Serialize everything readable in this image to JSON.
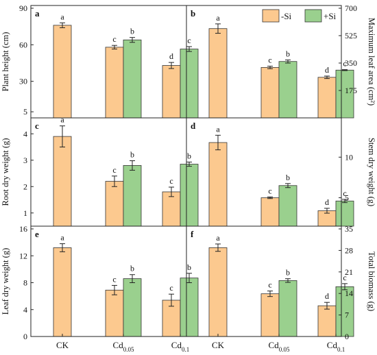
{
  "colors": {
    "minus_si": "#FCC98F",
    "plus_si": "#9AD08E",
    "edge": "#333333"
  },
  "legend": [
    {
      "label": "-Si",
      "color": "#FCC98F"
    },
    {
      "label": "+Si",
      "color": "#9AD08E"
    }
  ],
  "x_labels": [
    {
      "main": "CK",
      "sub": ""
    },
    {
      "main": "Cd",
      "sub": "0.05"
    },
    {
      "main": "Cd",
      "sub": "0.1"
    }
  ],
  "chart_data": [
    {
      "type": "bar",
      "panel": "a",
      "ylabel": "Plant height (cm)",
      "ylim": [
        0,
        90
      ],
      "yticks": [
        "5",
        "30",
        "60",
        "90"
      ],
      "yside": "left",
      "categories": [
        "CK",
        "Cd0.05",
        "Cd0.1"
      ],
      "series": [
        {
          "name": "-Si",
          "values": [
            76,
            58,
            43
          ],
          "errors": [
            2,
            1.5,
            2.5
          ],
          "letters": [
            "a",
            "c",
            "d"
          ]
        },
        {
          "name": "+Si",
          "values": [
            null,
            64,
            56.5
          ],
          "errors": [
            null,
            2,
            2
          ],
          "letters": [
            "",
            "b",
            "c"
          ]
        }
      ]
    },
    {
      "type": "bar",
      "panel": "b",
      "ylabel": "Maximum leaf area (cm²)",
      "ylim": [
        0,
        700
      ],
      "yticks": [
        "175",
        "350",
        "525",
        "700"
      ],
      "yside": "right",
      "categories": [
        "CK",
        "Cd0.05",
        "Cd0.1"
      ],
      "series": [
        {
          "name": "-Si",
          "values": [
            570,
            322,
            259
          ],
          "errors": [
            30,
            8,
            8
          ],
          "letters": [
            "a",
            "c",
            "d"
          ]
        },
        {
          "name": "+Si",
          "values": [
            null,
            360,
            305
          ],
          "errors": [
            null,
            10,
            3
          ],
          "letters": [
            "",
            "b",
            "c"
          ]
        }
      ]
    },
    {
      "type": "bar",
      "panel": "c",
      "ylabel": "Root dry weight (g)",
      "ylim": [
        0.5,
        4.5
      ],
      "yticks": [
        "1",
        "2",
        "3",
        "4"
      ],
      "yside": "left",
      "categories": [
        "CK",
        "Cd0.05",
        "Cd0.1"
      ],
      "series": [
        {
          "name": "-Si",
          "values": [
            3.9,
            2.2,
            1.8
          ],
          "errors": [
            0.4,
            0.2,
            0.18
          ],
          "letters": [
            "a",
            "c",
            "c"
          ]
        },
        {
          "name": "+Si",
          "values": [
            null,
            2.8,
            2.85
          ],
          "errors": [
            null,
            0.18,
            0.08
          ],
          "letters": [
            "",
            "b",
            "b"
          ]
        }
      ]
    },
    {
      "type": "bar",
      "panel": "d",
      "ylabel": "Stem dry weight (g)",
      "ylim": [
        1.5,
        14.5
      ],
      "yticks": [
        "5",
        "10"
      ],
      "yside": "right",
      "categories": [
        "CK",
        "Cd0.05",
        "Cd0.1"
      ],
      "series": [
        {
          "name": "-Si",
          "values": [
            11.8,
            5,
            3.4
          ],
          "errors": [
            0.9,
            0.1,
            0.3
          ],
          "letters": [
            "a",
            "c",
            "d"
          ]
        },
        {
          "name": "+Si",
          "values": [
            null,
            6.5,
            4.6
          ],
          "errors": [
            null,
            0.25,
            0.2
          ],
          "letters": [
            "",
            "b",
            "c"
          ]
        }
      ]
    },
    {
      "type": "bar",
      "panel": "e",
      "ylabel": "Leaf dry weight (g)",
      "ylim": [
        0,
        16
      ],
      "yticks": [
        "0",
        "4",
        "8",
        "12",
        "16"
      ],
      "yside": "left",
      "categories": [
        "CK",
        "Cd0.05",
        "Cd0.1"
      ],
      "series": [
        {
          "name": "-Si",
          "values": [
            13.2,
            6.9,
            5.4
          ],
          "errors": [
            0.6,
            0.7,
            0.9
          ],
          "letters": [
            "a",
            "c",
            "c"
          ]
        },
        {
          "name": "+Si",
          "values": [
            null,
            8.6,
            8.7
          ],
          "errors": [
            null,
            0.6,
            0.7
          ],
          "letters": [
            "",
            "b",
            "b"
          ]
        }
      ]
    },
    {
      "type": "bar",
      "panel": "f",
      "ylabel": "Total biomass (g)",
      "ylim": [
        0,
        35
      ],
      "yticks": [
        "0",
        "7",
        "14",
        "21",
        "28",
        "35"
      ],
      "yside": "right",
      "categories": [
        "CK",
        "Cd0.05",
        "Cd0.1"
      ],
      "series": [
        {
          "name": "-Si",
          "values": [
            28.9,
            13.9,
            10
          ],
          "errors": [
            1.2,
            0.9,
            1.1
          ],
          "letters": [
            "a",
            "c",
            "d"
          ]
        },
        {
          "name": "+Si",
          "values": [
            null,
            18.2,
            16.2
          ],
          "errors": [
            null,
            0.6,
            1.0
          ],
          "letters": [
            "",
            "b",
            "c"
          ]
        }
      ]
    }
  ]
}
